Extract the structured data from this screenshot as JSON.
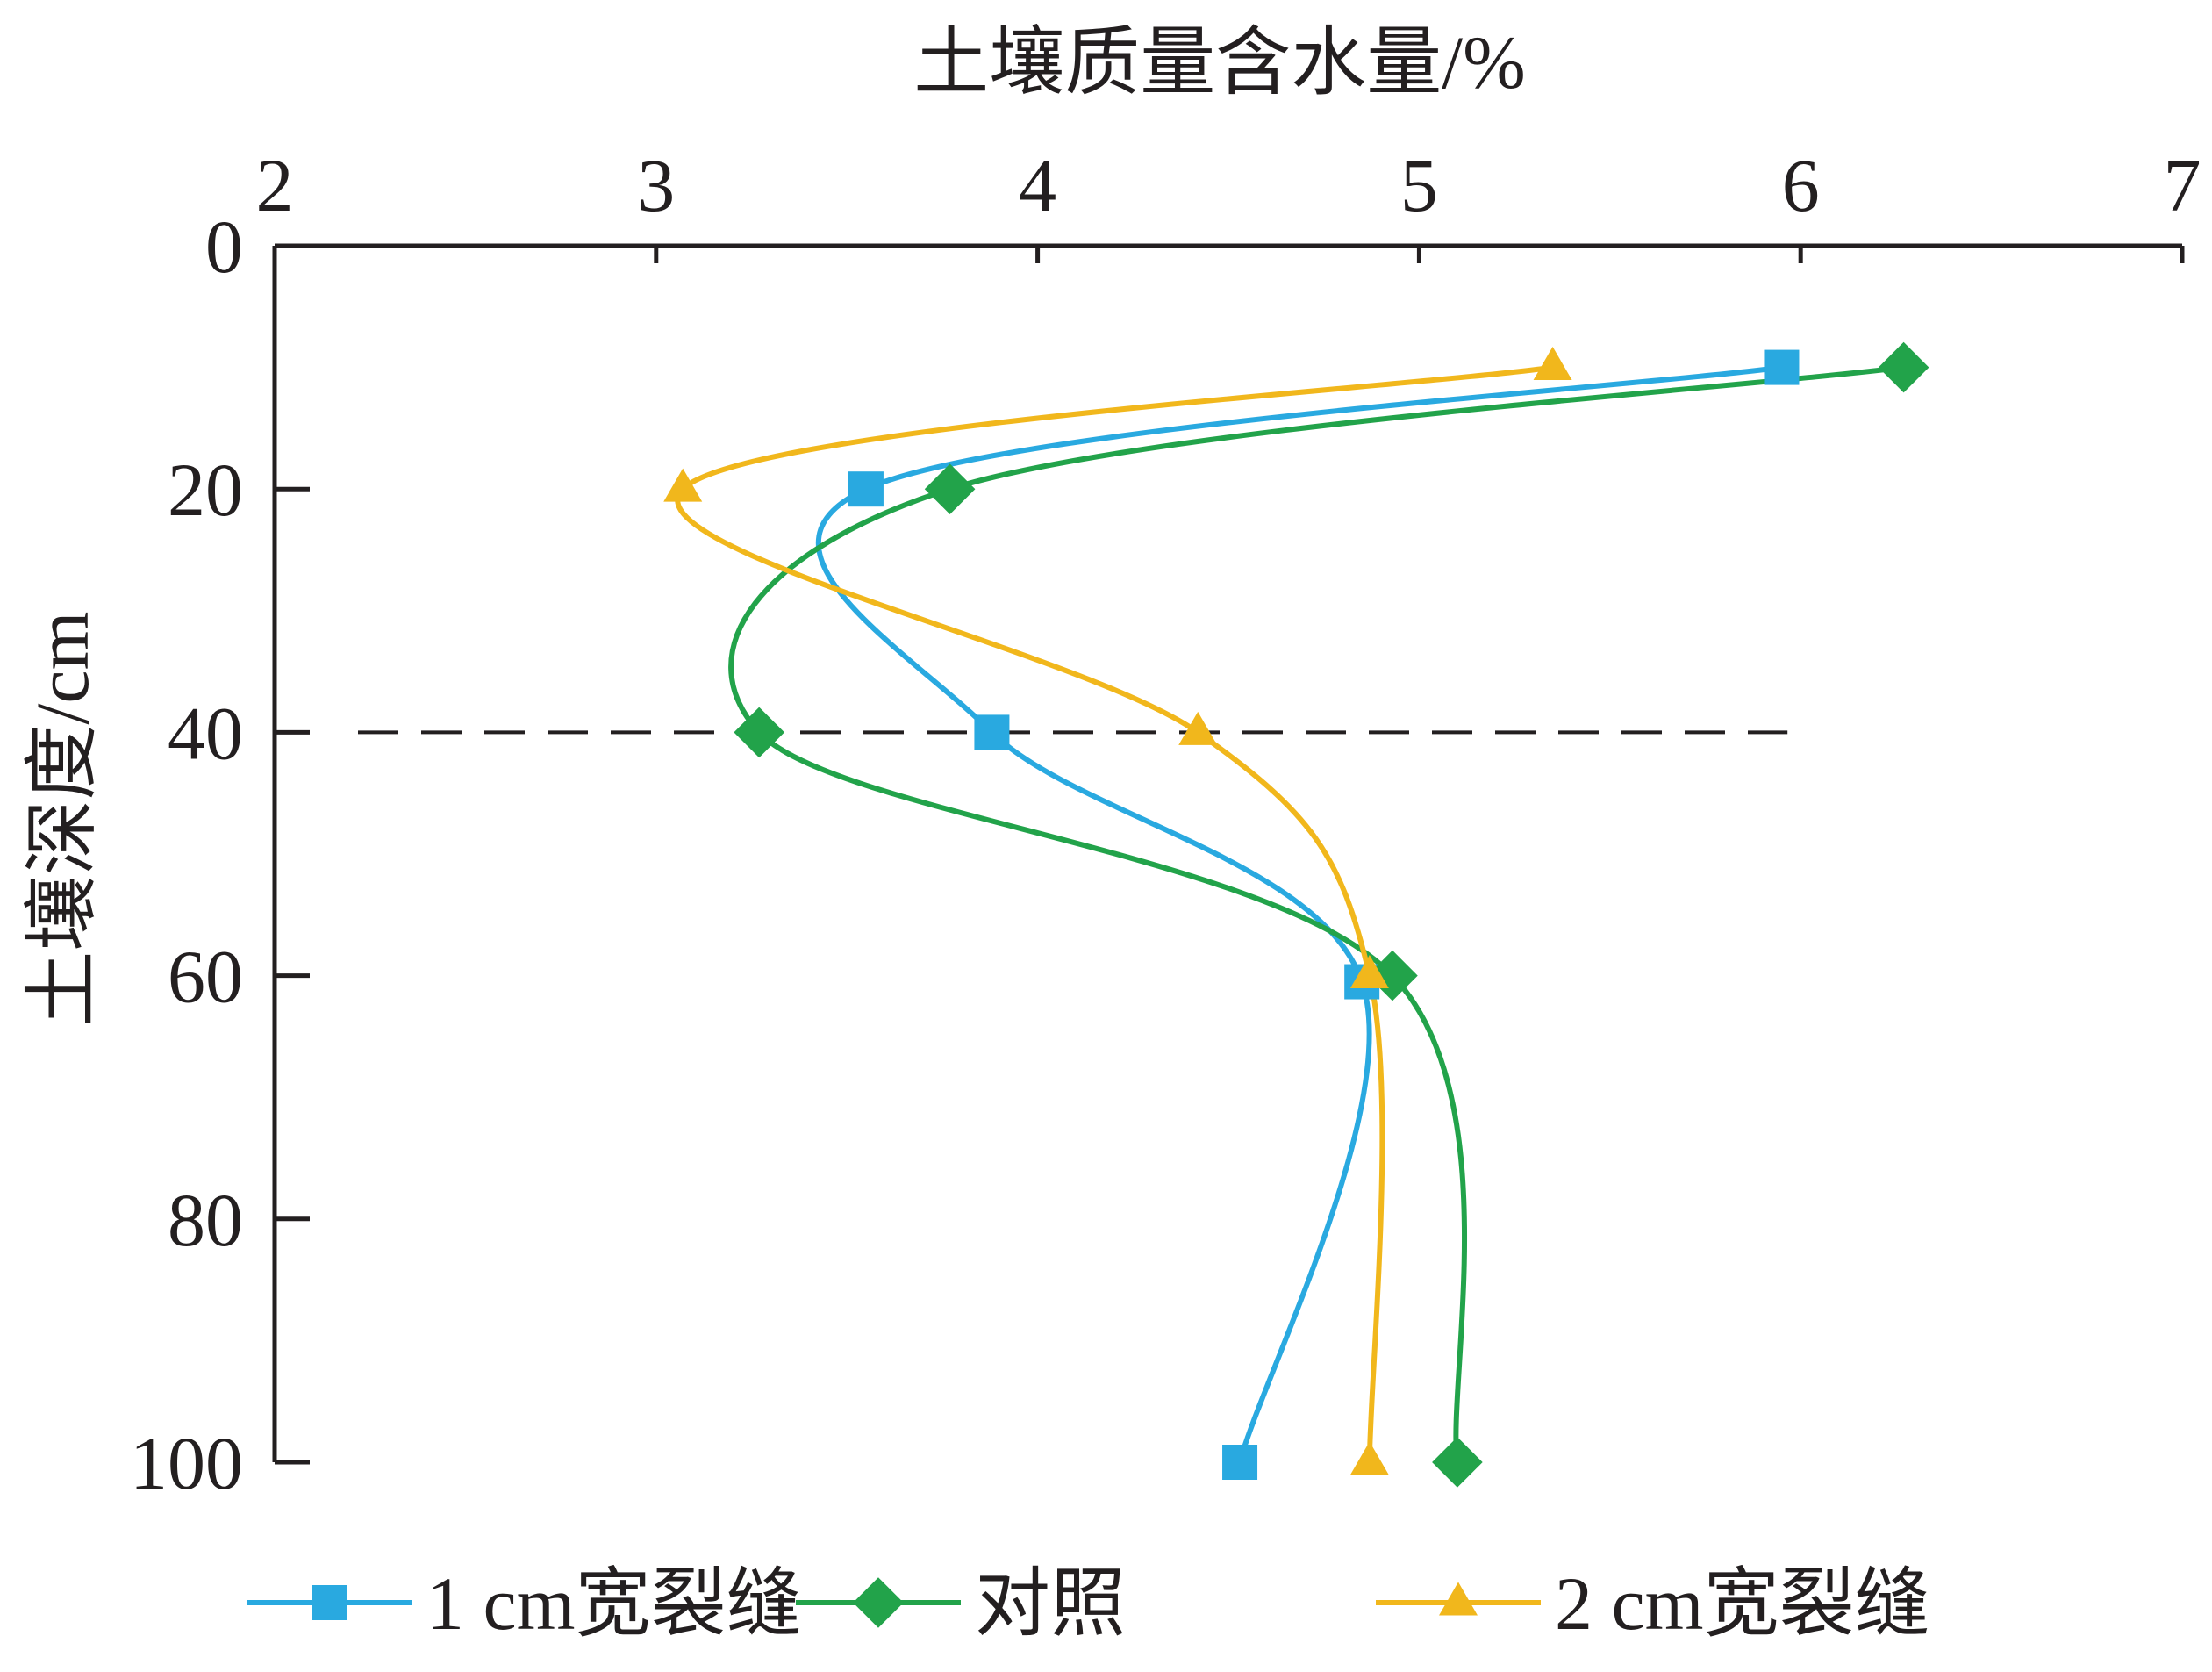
{
  "chart_data": {
    "type": "line",
    "title": "",
    "xlabel": "土壤质量含水量/%",
    "ylabel": "土壤深度/cm",
    "xlim": [
      2,
      7
    ],
    "ylim": [
      0,
      100
    ],
    "x_ticks": [
      2,
      3,
      4,
      5,
      6,
      7
    ],
    "y_ticks": [
      0,
      20,
      40,
      60,
      80,
      100
    ],
    "x_axis_position": "top",
    "y_axis_inverted": true,
    "smooth": true,
    "grid": false,
    "legend_position": "bottom",
    "reference_line": {
      "orientation": "horizontal",
      "depth": 40,
      "from_x": 2,
      "to_x": 6,
      "style": "dashed"
    },
    "series": [
      {
        "name": "1 cm宽裂缝",
        "color": "#29a9e0",
        "marker": "square",
        "points": [
          {
            "x": 5.95,
            "depth": 10
          },
          {
            "x": 3.55,
            "depth": 20
          },
          {
            "x": 3.88,
            "depth": 40
          },
          {
            "x": 4.85,
            "depth": 60.5
          },
          {
            "x": 4.53,
            "depth": 100
          }
        ]
      },
      {
        "name": "对照",
        "color": "#22a34a",
        "marker": "diamond",
        "points": [
          {
            "x": 6.27,
            "depth": 10
          },
          {
            "x": 3.77,
            "depth": 20
          },
          {
            "x": 3.27,
            "depth": 40
          },
          {
            "x": 4.93,
            "depth": 60
          },
          {
            "x": 5.1,
            "depth": 100
          }
        ]
      },
      {
        "name": "2 cm宽裂缝",
        "color": "#f1b71c",
        "marker": "triangle",
        "points": [
          {
            "x": 5.35,
            "depth": 10
          },
          {
            "x": 3.07,
            "depth": 20
          },
          {
            "x": 4.42,
            "depth": 40
          },
          {
            "x": 4.87,
            "depth": 60
          },
          {
            "x": 4.87,
            "depth": 100
          }
        ]
      }
    ]
  }
}
